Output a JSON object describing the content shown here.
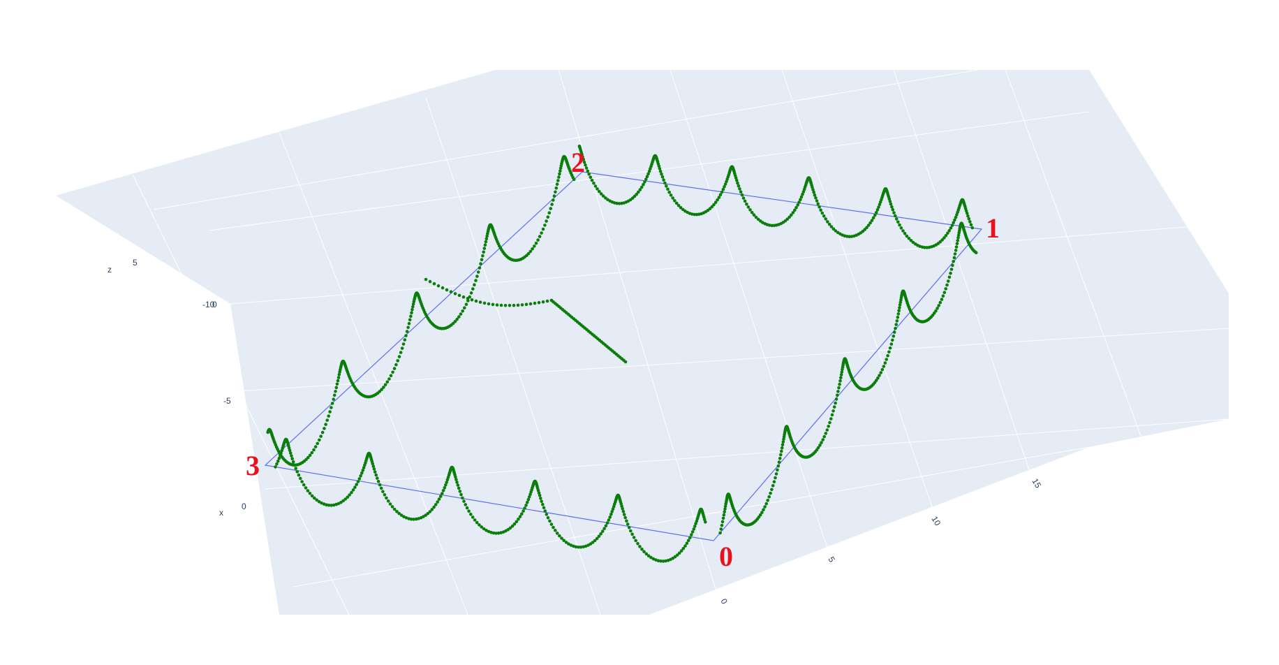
{
  "chart_data": {
    "type": "scatter",
    "projection": "3d",
    "series": [
      {
        "mode": "markers",
        "color": "#0a7d0a",
        "description_points": "Sinusoidal helix path traced around the rectangle of corners 0-1-2-3, then a straight tail from corner 2 toward the interior"
      },
      {
        "mode": "lines",
        "color": "#5b6ef5",
        "corners": [
          [
            0,
            0
          ],
          [
            12,
            0
          ],
          [
            12,
            10
          ],
          [
            0,
            10
          ]
        ]
      }
    ],
    "annotations": [
      "0",
      "1",
      "2",
      "3"
    ],
    "axes": {
      "x": {
        "title": "x",
        "ticks": [
          "0",
          "-5",
          "-10"
        ]
      },
      "y": {
        "title": "",
        "ticks": [
          "0",
          "5",
          "10",
          "15"
        ]
      },
      "z": {
        "title": "z",
        "ticks": [
          "5",
          "0"
        ]
      }
    },
    "background": "#e5ecf6",
    "grid": true
  },
  "colors": {
    "wall": "#e5ecf6",
    "trace": "#0a7d0a",
    "frame": "#5b6ef5",
    "annotation": "#e8121e"
  }
}
